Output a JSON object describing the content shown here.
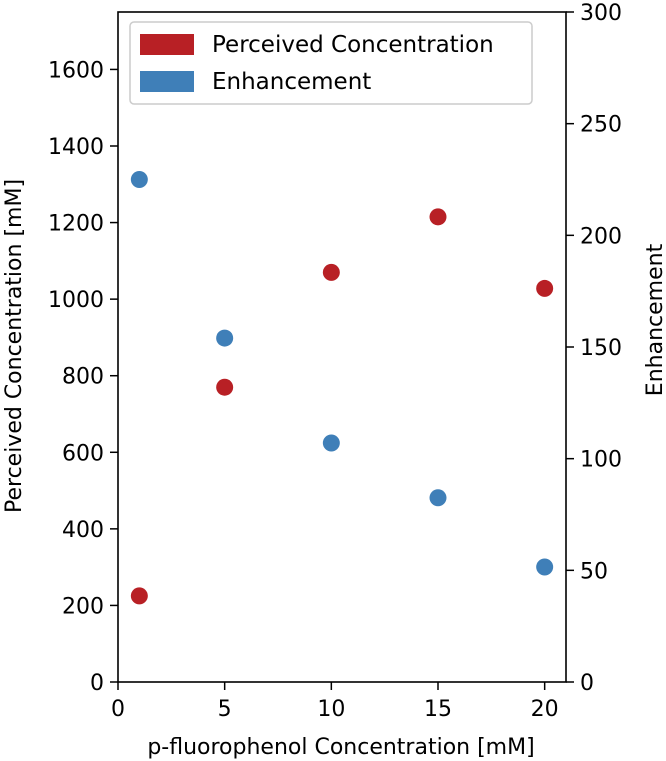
{
  "chart_data": {
    "type": "scatter",
    "xlabel": "p-fluorophenol Concentration [mM]",
    "ylabel": "Perceived Concentration [mM]",
    "y2label": "Enhancement",
    "xlim": [
      0,
      21
    ],
    "ylim": [
      0,
      1750
    ],
    "y2lim": [
      0,
      300
    ],
    "x_ticks": [
      0,
      5,
      10,
      15,
      20
    ],
    "y_ticks": [
      0,
      200,
      400,
      600,
      800,
      1000,
      1200,
      1400,
      1600
    ],
    "y2_ticks": [
      0,
      50,
      100,
      150,
      200,
      250,
      300
    ],
    "legend_position": "top",
    "grid": false,
    "series": [
      {
        "name": "Perceived Concentration",
        "axis": "left",
        "color": "#b82025",
        "x": [
          1,
          5,
          10,
          15,
          20
        ],
        "y": [
          225,
          770,
          1070,
          1215,
          1028
        ]
      },
      {
        "name": "Enhancement",
        "axis": "right",
        "color": "#3f7fb8",
        "x": [
          1,
          5,
          10,
          15,
          20
        ],
        "y": [
          225,
          154,
          107,
          82.5,
          51.5
        ]
      }
    ]
  }
}
